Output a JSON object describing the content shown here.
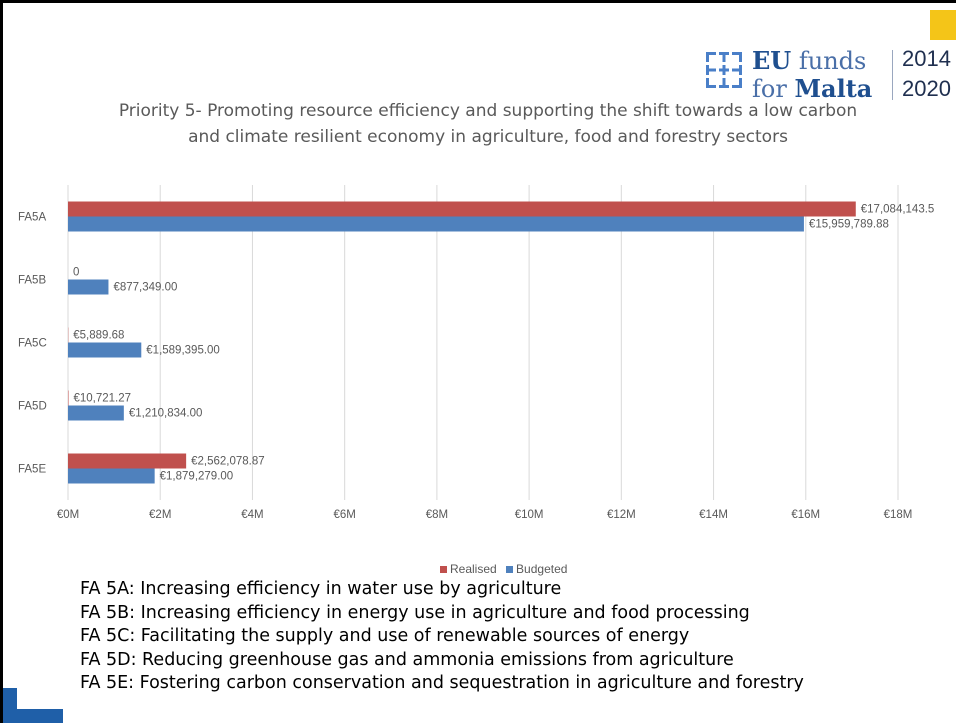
{
  "logo": {
    "eu": "EU",
    "funds": "funds",
    "for": "for",
    "malta": "Malta",
    "year_start": "2014",
    "year_end": "2020"
  },
  "colors": {
    "realised": "#c0504d",
    "budgeted": "#4f81bd",
    "text": "#595959",
    "logo_blue": "#1f4f8f",
    "accent_yellow": "#f4c518",
    "accent_blue": "#1f5fa8"
  },
  "chart_data": {
    "type": "bar",
    "orientation": "horizontal",
    "title": "Priority 5- Promoting resource efficiency and supporting the shift towards a low carbon and climate resilient economy in agriculture, food and forestry sectors",
    "categories": [
      "FA5A",
      "FA5B",
      "FA5C",
      "FA5D",
      "FA5E"
    ],
    "series": [
      {
        "name": "Realised",
        "values": [
          17084143.5,
          0,
          5889.68,
          10721.27,
          2562078.87
        ],
        "labels": [
          "€17,084,143.5",
          "0",
          "€5,889.68",
          "€10,721.27",
          "€2,562,078.87"
        ]
      },
      {
        "name": "Budgeted",
        "values": [
          15959789.88,
          877349.0,
          1589395.0,
          1210834.0,
          1879279.0
        ],
        "labels": [
          "€15,959,789.88",
          "€877,349.00",
          "€1,589,395.00",
          "€1,210,834.00",
          "€1,879,279.00"
        ]
      }
    ],
    "xlim": [
      0,
      18000000
    ],
    "x_ticks": [
      "€0M",
      "€2M",
      "€4M",
      "€6M",
      "€8M",
      "€10M",
      "€12M",
      "€14M",
      "€16M",
      "€18M"
    ],
    "grid": true,
    "legend": "bottom"
  },
  "notes": [
    "FA 5A: Increasing efficiency in water use by agriculture",
    "FA 5B: Increasing efficiency in energy use in agriculture and food processing",
    "FA 5C: Facilitating the supply and use of renewable sources of energy",
    "FA 5D: Reducing greenhouse gas and ammonia emissions from agriculture",
    "FA 5E: Fostering carbon conservation and sequestration in agriculture and forestry"
  ]
}
